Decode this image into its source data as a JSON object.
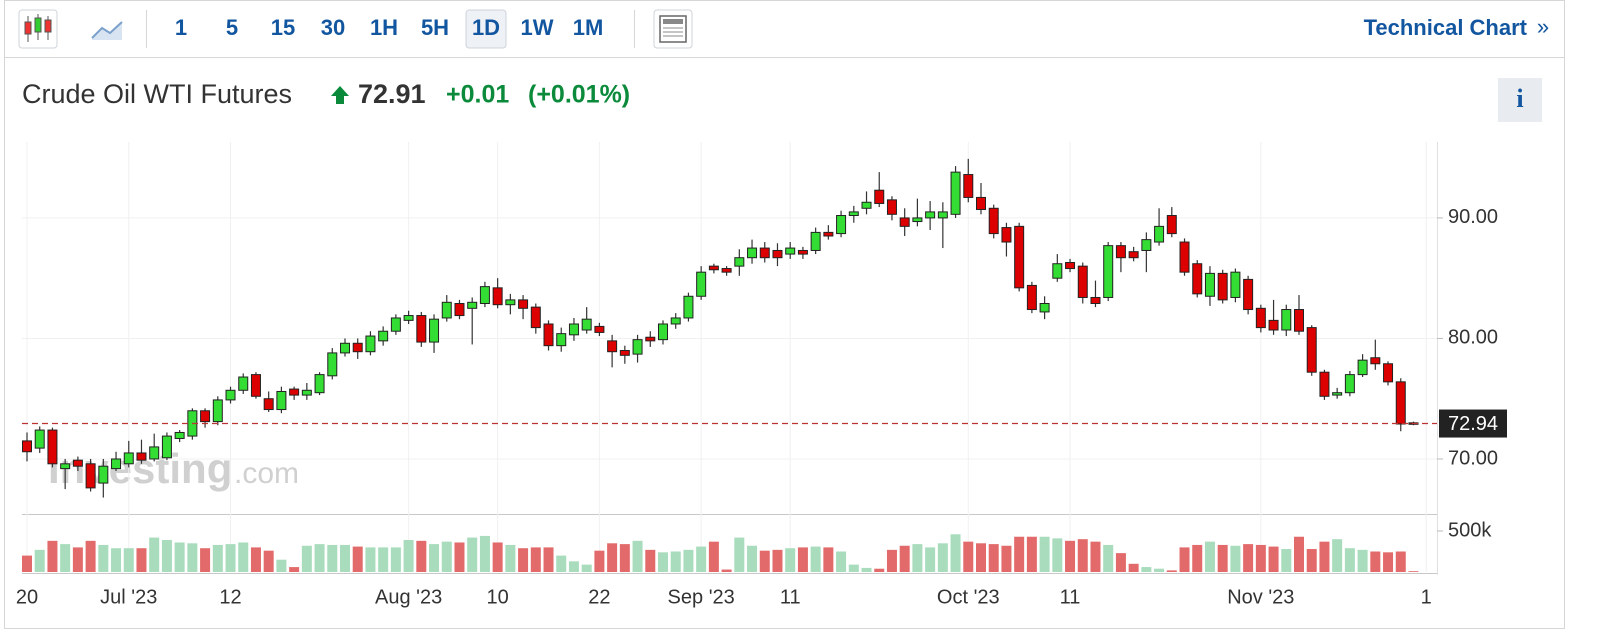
{
  "toolbar": {
    "intervals": [
      "1",
      "5",
      "15",
      "30",
      "1H",
      "5H",
      "1D",
      "1W",
      "1M"
    ],
    "active_interval": "1D",
    "technical_chart": "Technical Chart",
    "chevron": "»"
  },
  "header": {
    "title": "Crude Oil WTI Futures",
    "price": "72.91",
    "change": "+0.01",
    "change_percent": "(+0.01%)",
    "info": "i"
  },
  "watermark": {
    "brand": "Investing",
    "suffix": ".com"
  },
  "chart_data": {
    "type": "candlestick",
    "categories": [
      "20",
      null,
      null,
      null,
      null,
      null,
      null,
      null,
      "Jul '23",
      null,
      null,
      null,
      null,
      null,
      null,
      null,
      "12",
      null,
      null,
      null,
      null,
      null,
      null,
      null,
      null,
      null,
      null,
      null,
      null,
      null,
      "Aug '23",
      null,
      null,
      null,
      null,
      null,
      null,
      "10",
      null,
      null,
      null,
      null,
      null,
      null,
      null,
      "22",
      null,
      null,
      null,
      null,
      null,
      null,
      null,
      "Sep '23",
      null,
      null,
      null,
      null,
      null,
      null,
      "11",
      null,
      null,
      null,
      null,
      null,
      null,
      null,
      null,
      null,
      null,
      null,
      null,
      null,
      "Oct '23",
      null,
      null,
      null,
      null,
      null,
      null,
      null,
      "11",
      null,
      null,
      null,
      null,
      null,
      null,
      null,
      null,
      null,
      null,
      null,
      null,
      null,
      null,
      "Nov '23",
      null,
      null,
      null,
      null,
      null,
      null,
      null,
      null,
      null,
      null,
      null,
      null,
      "1"
    ],
    "open": [
      71.5,
      70.9,
      72.4,
      69.2,
      69.9,
      69.6,
      68.0,
      69.2,
      69.6,
      70.5,
      70.0,
      70.1,
      71.7,
      71.9,
      74.0,
      73.1,
      74.9,
      75.7,
      77.0,
      75.0,
      74.1,
      75.8,
      75.3,
      75.5,
      76.9,
      78.8,
      79.6,
      78.9,
      79.8,
      80.6,
      81.5,
      81.9,
      79.7,
      81.7,
      82.9,
      82.5,
      82.9,
      84.2,
      82.8,
      83.2,
      82.6,
      81.2,
      79.4,
      80.3,
      80.7,
      81.0,
      79.8,
      79.0,
      78.7,
      80.1,
      79.9,
      81.2,
      81.7,
      83.5,
      86.0,
      85.8,
      86.0,
      86.7,
      87.5,
      87.3,
      87.0,
      87.3,
      87.3,
      88.8,
      88.7,
      90.2,
      90.8,
      92.3,
      91.5,
      90.0,
      89.7,
      90.0,
      90.0,
      90.3,
      93.6,
      91.7,
      90.8,
      89.2,
      89.3,
      84.4,
      82.2,
      85.0,
      86.3,
      86.0,
      83.4,
      83.4,
      87.7,
      87.2,
      87.3,
      88.0,
      90.2,
      88.0,
      86.2,
      83.5,
      85.4,
      83.4,
      84.9,
      82.5,
      81.5,
      80.7,
      82.4,
      80.9,
      77.2,
      75.3,
      75.5,
      77.0,
      78.4,
      77.9,
      76.4,
      73.0,
      null
    ],
    "high": [
      72.2,
      72.7,
      72.6,
      70.0,
      70.2,
      70.0,
      70.0,
      70.6,
      71.5,
      71.6,
      72.1,
      72.2,
      72.4,
      74.2,
      74.2,
      75.2,
      76.0,
      77.1,
      77.2,
      75.6,
      76.0,
      76.0,
      76.3,
      77.2,
      79.2,
      80.0,
      80.0,
      80.6,
      81.0,
      82.0,
      82.3,
      82.2,
      82.0,
      83.6,
      83.2,
      83.4,
      84.7,
      85.0,
      83.7,
      83.6,
      82.9,
      81.5,
      80.9,
      81.7,
      82.6,
      81.3,
      80.3,
      79.4,
      80.3,
      80.6,
      81.5,
      82.1,
      83.8,
      86.0,
      86.2,
      86.0,
      87.4,
      88.2,
      88.0,
      87.9,
      88.0,
      87.6,
      89.2,
      89.4,
      90.6,
      91.0,
      92.2,
      93.8,
      91.8,
      90.8,
      91.6,
      91.4,
      91.3,
      94.3,
      94.9,
      92.9,
      91.1,
      89.6,
      89.6,
      84.7,
      83.5,
      87.0,
      86.6,
      86.3,
      84.8,
      88.0,
      88.0,
      87.6,
      88.8,
      90.8,
      90.9,
      88.3,
      86.5,
      86.0,
      85.7,
      85.8,
      85.2,
      82.8,
      83.2,
      82.8,
      83.6,
      81.1,
      77.4,
      75.9,
      77.3,
      78.7,
      79.9,
      78.1,
      76.7,
      73.1,
      null
    ],
    "low": [
      69.8,
      70.5,
      69.3,
      67.5,
      69.0,
      67.3,
      66.8,
      69.0,
      69.3,
      69.6,
      69.8,
      69.9,
      71.4,
      71.6,
      72.6,
      72.8,
      74.6,
      75.4,
      75.0,
      73.9,
      73.8,
      74.9,
      74.9,
      75.3,
      76.6,
      78.5,
      78.3,
      78.6,
      79.4,
      80.3,
      81.2,
      79.3,
      78.8,
      81.4,
      81.6,
      79.5,
      82.6,
      82.5,
      82.0,
      81.6,
      80.4,
      79.0,
      78.9,
      79.8,
      80.4,
      80.2,
      77.6,
      77.9,
      78.0,
      79.3,
      79.5,
      80.8,
      81.4,
      83.2,
      85.4,
      85.2,
      85.2,
      86.2,
      86.3,
      86.0,
      86.6,
      86.6,
      87.0,
      88.2,
      88.4,
      89.6,
      90.3,
      90.9,
      89.8,
      88.5,
      89.3,
      89.0,
      87.5,
      90.0,
      91.3,
      90.3,
      88.3,
      86.8,
      83.9,
      82.1,
      81.6,
      84.7,
      85.5,
      82.9,
      82.6,
      83.1,
      85.5,
      86.4,
      85.5,
      87.7,
      88.4,
      85.2,
      83.4,
      82.7,
      82.9,
      83.0,
      82.0,
      80.5,
      80.3,
      80.2,
      80.3,
      76.9,
      74.9,
      75.0,
      75.2,
      76.8,
      77.4,
      76.1,
      72.3,
      72.8,
      null
    ],
    "close": [
      70.6,
      72.4,
      69.6,
      69.6,
      69.4,
      67.6,
      69.4,
      70.0,
      70.5,
      69.9,
      71.0,
      71.9,
      72.2,
      74.0,
      73.1,
      74.9,
      75.7,
      76.8,
      75.2,
      74.1,
      75.6,
      75.3,
      75.7,
      77.0,
      78.8,
      79.6,
      78.9,
      80.2,
      80.6,
      81.7,
      81.9,
      79.7,
      81.6,
      83.0,
      81.9,
      83.0,
      84.3,
      82.8,
      83.2,
      82.5,
      80.9,
      79.4,
      80.4,
      81.2,
      81.6,
      80.5,
      78.9,
      78.6,
      79.9,
      79.8,
      81.2,
      81.7,
      83.5,
      85.5,
      85.7,
      85.5,
      86.7,
      87.5,
      86.7,
      86.7,
      87.5,
      87.0,
      88.8,
      88.5,
      90.2,
      90.5,
      91.3,
      91.2,
      90.3,
      89.3,
      90.0,
      90.5,
      90.5,
      93.8,
      91.7,
      90.7,
      88.7,
      88.0,
      84.2,
      82.4,
      82.9,
      86.2,
      85.8,
      83.4,
      82.9,
      87.7,
      86.7,
      86.7,
      88.2,
      89.3,
      88.7,
      85.5,
      83.7,
      85.4,
      83.2,
      85.5,
      82.4,
      80.9,
      80.7,
      82.4,
      80.6,
      77.2,
      75.2,
      75.5,
      77.0,
      78.2,
      77.9,
      76.4,
      72.9,
      72.9,
      null
    ],
    "volume": [
      200000,
      270000,
      380000,
      340000,
      300000,
      380000,
      330000,
      290000,
      290000,
      290000,
      420000,
      390000,
      360000,
      350000,
      290000,
      330000,
      340000,
      360000,
      300000,
      260000,
      150000,
      60000,
      320000,
      340000,
      330000,
      330000,
      310000,
      300000,
      300000,
      300000,
      390000,
      380000,
      340000,
      370000,
      360000,
      420000,
      440000,
      360000,
      330000,
      290000,
      300000,
      300000,
      200000,
      130000,
      90000,
      260000,
      350000,
      340000,
      380000,
      270000,
      240000,
      250000,
      270000,
      310000,
      370000,
      30000,
      420000,
      320000,
      260000,
      270000,
      290000,
      300000,
      310000,
      300000,
      250000,
      90000,
      50000,
      40000,
      270000,
      320000,
      340000,
      300000,
      350000,
      460000,
      370000,
      350000,
      340000,
      320000,
      430000,
      430000,
      430000,
      410000,
      380000,
      400000,
      370000,
      330000,
      230000,
      100000,
      60000,
      40000,
      20000,
      300000,
      330000,
      370000,
      330000,
      320000,
      340000,
      330000,
      310000,
      280000,
      430000,
      280000,
      370000,
      400000,
      290000,
      270000,
      250000,
      240000,
      250000,
      10000,
      null
    ],
    "up_color": "#33dd33",
    "down_color": "#dd0000",
    "volume_up_color": "#a8dcbc",
    "volume_down_color": "#e36a6a",
    "ylim": [
      65.6,
      96.3
    ],
    "yticks": [
      {
        "value": 70,
        "label": "70.00"
      },
      {
        "value": 80,
        "label": "80.00"
      },
      {
        "value": 90,
        "label": "90.00"
      }
    ],
    "volume_ylim": [
      0,
      695000
    ],
    "volume_ticks": [
      {
        "value": 500000,
        "label": "500k"
      }
    ],
    "last_price": 72.94,
    "grid": true
  }
}
